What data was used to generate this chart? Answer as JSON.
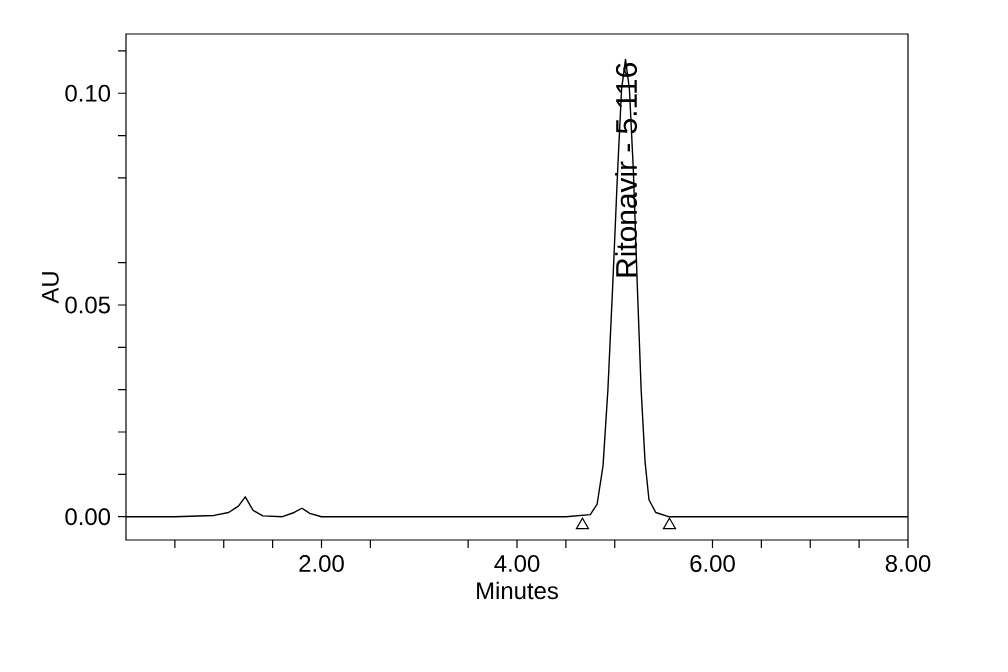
{
  "chart_data": {
    "type": "line",
    "xlabel": "Minutes",
    "ylabel": "AU",
    "xlim": [
      0,
      8
    ],
    "ylim": [
      -0.0055,
      0.114
    ],
    "xticks": [
      {
        "value": 0.5,
        "label": null
      },
      {
        "value": 1,
        "label": null
      },
      {
        "value": 1.5,
        "label": null
      },
      {
        "value": 2,
        "label": "2.00"
      },
      {
        "value": 2.5,
        "label": null
      },
      {
        "value": 3.5,
        "label": null
      },
      {
        "value": 4,
        "label": "4.00"
      },
      {
        "value": 4.5,
        "label": null
      },
      {
        "value": 5,
        "label": null
      },
      {
        "value": 6,
        "label": "6.00"
      },
      {
        "value": 6.5,
        "label": null
      },
      {
        "value": 7,
        "label": null
      },
      {
        "value": 7.5,
        "label": null
      },
      {
        "value": 8,
        "label": "8.00"
      }
    ],
    "yticks": [
      {
        "value": 0,
        "label": "0.00"
      },
      {
        "value": 0.01,
        "label": null
      },
      {
        "value": 0.02,
        "label": null
      },
      {
        "value": 0.03,
        "label": null
      },
      {
        "value": 0.04,
        "label": null
      },
      {
        "value": 0.05,
        "label": "0.05"
      },
      {
        "value": 0.06,
        "label": null
      },
      {
        "value": 0.08,
        "label": null
      },
      {
        "value": 0.09,
        "label": null
      },
      {
        "value": 0.1,
        "label": "0.10"
      },
      {
        "value": 0.11,
        "label": null
      }
    ],
    "grid": false,
    "annotations": [
      {
        "text": "Ritonavir - 5.116",
        "x": 5.116,
        "y": 0.108
      }
    ],
    "series": [
      {
        "color": "#000000",
        "marker": "none",
        "x": [
          0,
          0.5,
          0.9,
          1.05,
          1.15,
          1.22,
          1.3,
          1.4,
          1.6,
          1.72,
          1.8,
          1.88,
          2.0,
          3,
          4.5,
          4.75,
          4.82,
          4.88,
          4.93,
          4.98,
          5.03,
          5.07,
          5.11,
          5.15,
          5.19,
          5.23,
          5.27,
          5.31,
          5.35,
          5.42,
          5.55,
          6,
          8
        ],
        "values": [
          0,
          0,
          0.0003,
          0.001,
          0.0025,
          0.0047,
          0.0015,
          0.0002,
          0,
          0.001,
          0.002,
          0.0008,
          0,
          0,
          0,
          0.0005,
          0.003,
          0.012,
          0.03,
          0.055,
          0.082,
          0.101,
          0.108,
          0.101,
          0.082,
          0.055,
          0.03,
          0.013,
          0.004,
          0.001,
          0,
          0,
          0
        ]
      },
      {
        "type": "scatter",
        "color": "#000000",
        "marker": "triangle",
        "x": [
          4.67,
          5.56
        ],
        "values": [
          -0.002,
          -0.002
        ]
      }
    ]
  }
}
